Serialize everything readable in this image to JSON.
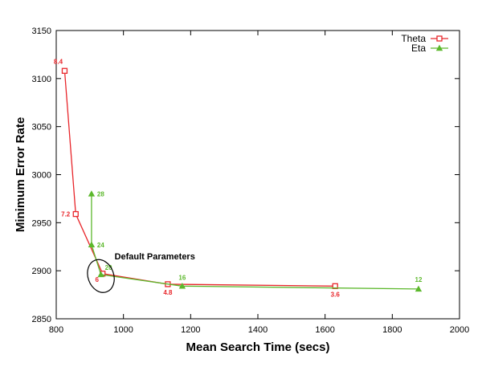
{
  "chart_data": {
    "type": "line",
    "xlabel": "Mean Search Time (secs)",
    "ylabel": "Minimum Error Rate",
    "xlim": [
      800,
      2000
    ],
    "ylim": [
      2850,
      3150
    ],
    "x_ticks": [
      800,
      1000,
      1200,
      1400,
      1600,
      1800,
      2000
    ],
    "y_ticks": [
      2850,
      2900,
      2950,
      3000,
      3050,
      3100,
      3150
    ],
    "legend_position": "top-right",
    "series": [
      {
        "name": "Theta",
        "color": "#e8262b",
        "marker": "square",
        "points": [
          {
            "x": 825,
            "y": 3108,
            "label": "8.4"
          },
          {
            "x": 858,
            "y": 2959,
            "label": "7.2"
          },
          {
            "x": 938,
            "y": 2897,
            "label": "6"
          },
          {
            "x": 1132,
            "y": 2886,
            "label": "4.8"
          },
          {
            "x": 1630,
            "y": 2884,
            "label": "3.6"
          }
        ]
      },
      {
        "name": "Eta",
        "color": "#5cb82c",
        "marker": "triangle",
        "points": [
          {
            "x": 905,
            "y": 2980,
            "label": "28"
          },
          {
            "x": 905,
            "y": 2927,
            "label": "24"
          },
          {
            "x": 933,
            "y": 2896,
            "label": "20"
          },
          {
            "x": 1175,
            "y": 2884,
            "label": "16"
          },
          {
            "x": 1878,
            "y": 2881,
            "label": "12"
          }
        ]
      }
    ],
    "annotations": [
      {
        "text": "Default Parameters",
        "x": 940,
        "y": 2897
      }
    ]
  }
}
